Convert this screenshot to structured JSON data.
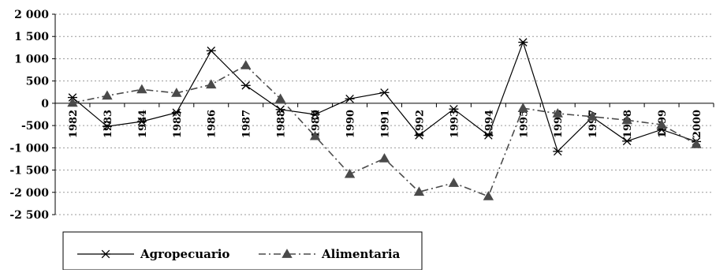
{
  "chart_data": {
    "type": "line",
    "title": "",
    "xlabel": "",
    "ylabel": "",
    "ylim": [
      -2500,
      2000
    ],
    "grid": "horizontal dotted",
    "legend_position": "bottom-left",
    "y_ticks": [
      "2 000",
      "1 500",
      "1 000",
      "500",
      "0",
      "-500",
      "-1 000",
      "-1 500",
      "-2 000",
      "-2 500"
    ],
    "categories": [
      "1982",
      "1983",
      "1984",
      "1985",
      "1986",
      "1987",
      "1988",
      "1989",
      "1990",
      "1991",
      "1992",
      "1993",
      "1994",
      "1995",
      "1996",
      "1997",
      "1998",
      "1999",
      "2000"
    ],
    "series": [
      {
        "name": "Agropecuario",
        "line": "solid",
        "marker": "asterisk",
        "color": "#000000",
        "values": [
          130,
          -520,
          -410,
          -210,
          1180,
          400,
          -140,
          -250,
          100,
          240,
          -720,
          -130,
          -720,
          1370,
          -1080,
          -310,
          -850,
          -590,
          -860
        ]
      },
      {
        "name": "Alimentaria",
        "line": "dash-dot",
        "marker": "triangle",
        "color": "#4a4a4a",
        "values": [
          10,
          170,
          310,
          230,
          420,
          850,
          100,
          -740,
          -1590,
          -1240,
          -1990,
          -1790,
          -2090,
          -110,
          -230,
          -300,
          -380,
          -480,
          -920
        ]
      }
    ]
  }
}
